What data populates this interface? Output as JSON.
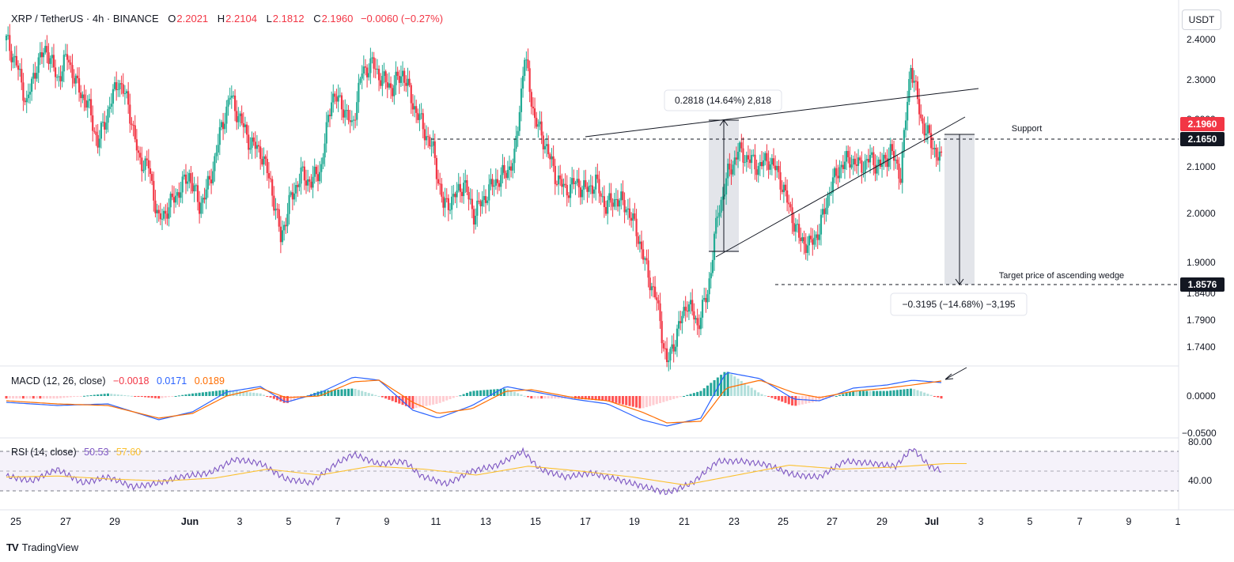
{
  "header": {
    "symbol": "XRP / TetherUS · 4h · BINANCE",
    "open_label": "O",
    "open": "2.2021",
    "high_label": "H",
    "high": "2.2104",
    "low_label": "L",
    "low": "2.1812",
    "close_label": "C",
    "close": "2.1960",
    "change": "−0.0060 (−0.27%)"
  },
  "currency_button": "USDT",
  "macd_header": {
    "title": "MACD (12, 26, close)",
    "hist": "−0.0018",
    "macd": "0.0171",
    "signal": "0.0189"
  },
  "rsi_header": {
    "title": "RSI (14, close)",
    "rsi": "50.53",
    "ma": "57.60"
  },
  "branding": "TradingView",
  "colors": {
    "up": "#22ab94",
    "down": "#f23645",
    "macd": "#2962ff",
    "signal": "#ff6d00",
    "rsi": "#7e57c2",
    "rsi_ma": "#fbc02d",
    "hist_up_strong": "#26a69a",
    "hist_up_weak": "#b2dfdb",
    "hist_down_strong": "#ff5252",
    "hist_down_weak": "#ffcdd2"
  },
  "chart_data": {
    "type": "candlestick",
    "timeframe": "4h",
    "x_ticks": [
      "25",
      "27",
      "29",
      "Jun",
      "3",
      "5",
      "7",
      "9",
      "11",
      "13",
      "15",
      "17",
      "19",
      "21",
      "23",
      "25",
      "27",
      "29",
      "Jul",
      "3",
      "5",
      "7",
      "9",
      "1"
    ],
    "y_ticks": [
      "2.4000",
      "2.3000",
      "2.2000",
      "2.1000",
      "2.0000",
      "1.9000",
      "1.8400",
      "1.7900",
      "1.7400"
    ],
    "price_labels": {
      "current": "2.1960",
      "support": "2.1650",
      "target": "1.8576"
    },
    "annotations": {
      "support_label": "Support",
      "target_label": "Target price of ascending wedge",
      "up_measure": "0.2818 (14.64%) 2,818",
      "down_measure": "−0.3195 (−14.68%) −3,195"
    },
    "key_levels": {
      "support": 2.165,
      "target": 1.8576,
      "wedge_low": 1.925,
      "wedge_high": 2.33
    },
    "macd_ticks": [
      "0.0000",
      "−0.0500"
    ],
    "rsi_ticks": [
      "80.00",
      "40.00"
    ],
    "rsi_bands": [
      70,
      30
    ],
    "close_path": [
      [
        0,
        2.35
      ],
      [
        6,
        2.32
      ],
      [
        12,
        2.27
      ],
      [
        18,
        2.32
      ],
      [
        24,
        2.34
      ],
      [
        30,
        2.3
      ],
      [
        36,
        2.33
      ],
      [
        42,
        2.29
      ],
      [
        48,
        2.27
      ],
      [
        54,
        2.22
      ],
      [
        60,
        2.26
      ],
      [
        66,
        2.3
      ],
      [
        72,
        2.27
      ],
      [
        78,
        2.2
      ],
      [
        84,
        2.19
      ],
      [
        90,
        2.12
      ],
      [
        96,
        2.14
      ],
      [
        102,
        2.16
      ],
      [
        108,
        2.18
      ],
      [
        114,
        2.14
      ],
      [
        120,
        2.17
      ],
      [
        126,
        2.23
      ],
      [
        132,
        2.28
      ],
      [
        138,
        2.25
      ],
      [
        144,
        2.22
      ],
      [
        150,
        2.21
      ],
      [
        156,
        2.17
      ],
      [
        162,
        2.1
      ],
      [
        168,
        2.15
      ],
      [
        174,
        2.18
      ],
      [
        180,
        2.17
      ],
      [
        186,
        2.19
      ],
      [
        192,
        2.28
      ],
      [
        198,
        2.27
      ],
      [
        204,
        2.24
      ],
      [
        210,
        2.31
      ],
      [
        216,
        2.32
      ],
      [
        222,
        2.3
      ],
      [
        228,
        2.29
      ],
      [
        234,
        2.31
      ],
      [
        240,
        2.27
      ],
      [
        246,
        2.24
      ],
      [
        252,
        2.21
      ],
      [
        258,
        2.14
      ],
      [
        264,
        2.15
      ],
      [
        270,
        2.17
      ],
      [
        276,
        2.13
      ],
      [
        282,
        2.15
      ],
      [
        288,
        2.17
      ],
      [
        294,
        2.18
      ],
      [
        300,
        2.2
      ],
      [
        306,
        2.33
      ],
      [
        312,
        2.25
      ],
      [
        318,
        2.22
      ],
      [
        324,
        2.18
      ],
      [
        330,
        2.16
      ],
      [
        336,
        2.17
      ],
      [
        342,
        2.16
      ],
      [
        348,
        2.17
      ],
      [
        354,
        2.14
      ],
      [
        360,
        2.15
      ],
      [
        366,
        2.14
      ],
      [
        372,
        2.11
      ],
      [
        378,
        2.06
      ],
      [
        384,
        2.02
      ],
      [
        390,
        1.94
      ],
      [
        396,
        1.98
      ],
      [
        402,
        2.02
      ],
      [
        408,
        1.99
      ],
      [
        414,
        2.03
      ],
      [
        420,
        2.13
      ],
      [
        426,
        2.18
      ],
      [
        432,
        2.21
      ],
      [
        438,
        2.2
      ],
      [
        444,
        2.19
      ],
      [
        450,
        2.2
      ],
      [
        456,
        2.18
      ],
      [
        462,
        2.14
      ],
      [
        468,
        2.1
      ],
      [
        474,
        2.09
      ],
      [
        480,
        2.11
      ],
      [
        486,
        2.16
      ],
      [
        492,
        2.19
      ],
      [
        498,
        2.2
      ],
      [
        504,
        2.19
      ],
      [
        510,
        2.2
      ],
      [
        516,
        2.19
      ],
      [
        522,
        2.21
      ],
      [
        528,
        2.18
      ],
      [
        534,
        2.32
      ],
      [
        540,
        2.25
      ],
      [
        546,
        2.22
      ],
      [
        552,
        2.196
      ]
    ],
    "macd_path": [
      [
        0,
        -0.008
      ],
      [
        30,
        -0.012
      ],
      [
        60,
        -0.01
      ],
      [
        90,
        -0.03
      ],
      [
        110,
        -0.02
      ],
      [
        130,
        0.005
      ],
      [
        150,
        0.012
      ],
      [
        165,
        -0.008
      ],
      [
        185,
        0.004
      ],
      [
        205,
        0.024
      ],
      [
        220,
        0.02
      ],
      [
        240,
        -0.018
      ],
      [
        255,
        -0.028
      ],
      [
        275,
        -0.012
      ],
      [
        295,
        0.012
      ],
      [
        310,
        0.006
      ],
      [
        335,
        -0.004
      ],
      [
        355,
        -0.01
      ],
      [
        375,
        -0.03
      ],
      [
        390,
        -0.038
      ],
      [
        410,
        -0.028
      ],
      [
        425,
        0.03
      ],
      [
        445,
        0.022
      ],
      [
        465,
        -0.004
      ],
      [
        480,
        -0.006
      ],
      [
        500,
        0.01
      ],
      [
        520,
        0.014
      ],
      [
        535,
        0.02
      ],
      [
        552,
        0.017
      ]
    ],
    "signal_path": [
      [
        0,
        -0.006
      ],
      [
        30,
        -0.01
      ],
      [
        60,
        -0.012
      ],
      [
        90,
        -0.028
      ],
      [
        110,
        -0.022
      ],
      [
        130,
        0.0
      ],
      [
        150,
        0.01
      ],
      [
        165,
        -0.002
      ],
      [
        185,
        0.0
      ],
      [
        205,
        0.018
      ],
      [
        220,
        0.02
      ],
      [
        240,
        -0.008
      ],
      [
        255,
        -0.022
      ],
      [
        275,
        -0.016
      ],
      [
        295,
        0.006
      ],
      [
        310,
        0.008
      ],
      [
        335,
        -0.002
      ],
      [
        355,
        -0.006
      ],
      [
        375,
        -0.02
      ],
      [
        390,
        -0.034
      ],
      [
        410,
        -0.032
      ],
      [
        425,
        0.01
      ],
      [
        445,
        0.02
      ],
      [
        465,
        0.004
      ],
      [
        480,
        -0.002
      ],
      [
        500,
        0.006
      ],
      [
        520,
        0.01
      ],
      [
        535,
        0.014
      ],
      [
        552,
        0.019
      ]
    ],
    "rsi_path": [
      [
        0,
        45
      ],
      [
        15,
        40
      ],
      [
        30,
        52
      ],
      [
        45,
        38
      ],
      [
        60,
        44
      ],
      [
        75,
        34
      ],
      [
        90,
        38
      ],
      [
        105,
        45
      ],
      [
        120,
        48
      ],
      [
        135,
        62
      ],
      [
        150,
        58
      ],
      [
        165,
        42
      ],
      [
        180,
        38
      ],
      [
        195,
        58
      ],
      [
        205,
        67
      ],
      [
        220,
        57
      ],
      [
        235,
        60
      ],
      [
        245,
        45
      ],
      [
        260,
        37
      ],
      [
        275,
        50
      ],
      [
        290,
        56
      ],
      [
        305,
        70
      ],
      [
        315,
        52
      ],
      [
        330,
        44
      ],
      [
        345,
        48
      ],
      [
        360,
        42
      ],
      [
        375,
        35
      ],
      [
        390,
        28
      ],
      [
        405,
        38
      ],
      [
        420,
        60
      ],
      [
        435,
        60
      ],
      [
        450,
        56
      ],
      [
        465,
        46
      ],
      [
        480,
        44
      ],
      [
        495,
        60
      ],
      [
        510,
        58
      ],
      [
        525,
        55
      ],
      [
        535,
        73
      ],
      [
        545,
        55
      ],
      [
        552,
        50.5
      ]
    ],
    "rsi_ma_path": [
      [
        0,
        44
      ],
      [
        30,
        45
      ],
      [
        60,
        42
      ],
      [
        90,
        40
      ],
      [
        120,
        43
      ],
      [
        150,
        52
      ],
      [
        180,
        46
      ],
      [
        210,
        55
      ],
      [
        240,
        52
      ],
      [
        270,
        46
      ],
      [
        300,
        55
      ],
      [
        330,
        50
      ],
      [
        360,
        44
      ],
      [
        390,
        36
      ],
      [
        420,
        46
      ],
      [
        450,
        56
      ],
      [
        480,
        52
      ],
      [
        510,
        54
      ],
      [
        540,
        57.6
      ],
      [
        552,
        57.6
      ]
    ]
  }
}
